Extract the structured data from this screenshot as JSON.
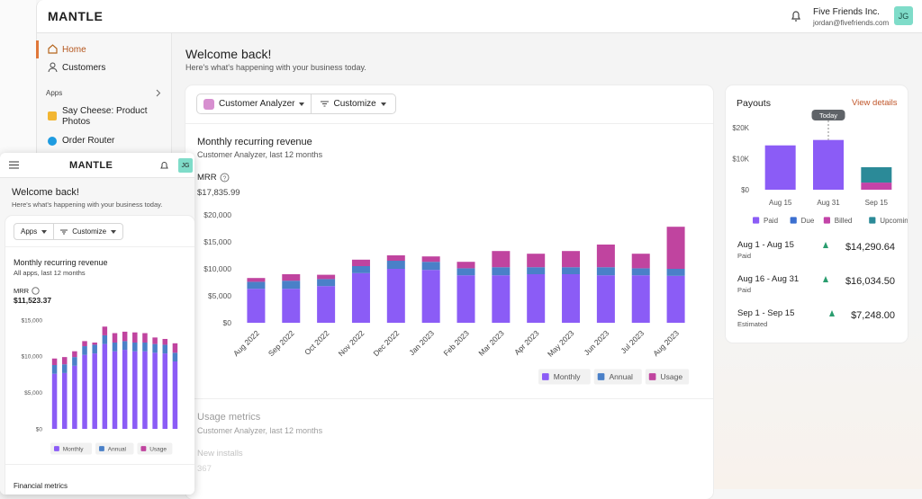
{
  "header": {
    "logo": "MANTLE",
    "company": "Five Friends Inc.",
    "email": "jordan@fivefriends.com",
    "avatar": "JG"
  },
  "sidebar": {
    "nav": [
      "Home",
      "Customers"
    ],
    "apps_heading": "Apps",
    "apps": [
      "Say Cheese: Product Photos",
      "Order Router"
    ]
  },
  "welcome": {
    "title": "Welcome back!",
    "subtitle": "Here's what's happening with your business today."
  },
  "toolbar": {
    "app_select": "Customer Analyzer",
    "customize": "Customize"
  },
  "mrr_card": {
    "title": "Monthly recurring revenue",
    "subtitle": "Customer Analyzer, last 12 months",
    "metric_label": "MRR",
    "metric_value": "$17,835.99"
  },
  "usage_card": {
    "title": "Usage metrics",
    "subtitle": "Customer Analyzer, last 12 months",
    "metric_label": "New installs",
    "metric_value": "367"
  },
  "payouts": {
    "title": "Payouts",
    "link": "View details",
    "rows": [
      {
        "period": "Aug 1 - Aug 15",
        "status": "Paid",
        "amount": "$14,290.64"
      },
      {
        "period": "Aug 16 - Aug 31",
        "status": "Paid",
        "amount": "$16,034.50"
      },
      {
        "period": "Sep 1 - Sep 15",
        "status": "Estimated",
        "amount": "$7,248.00"
      }
    ]
  },
  "mobile": {
    "logo": "MANTLE",
    "avatar": "JG",
    "title": "Welcome back!",
    "subtitle": "Here's what's happening with your business today.",
    "apps_button": "Apps",
    "customize": "Customize",
    "card_title": "Monthly recurring revenue",
    "card_subtitle": "All apps, last 12 months",
    "metric_label": "MRR",
    "metric_value": "$11,523.37",
    "next_section": "Financial metrics"
  },
  "chart_data": [
    {
      "type": "bar",
      "stacked": true,
      "grid": false,
      "categories": [
        "Aug 2022",
        "Sep 2022",
        "Oct 2022",
        "Nov 2022",
        "Dec 2022",
        "Jan 2023",
        "Feb 2023",
        "Mar 2023",
        "Apr 2023",
        "May 2023",
        "Jun 2023",
        "Jul 2023",
        "Aug 2023"
      ],
      "series": [
        {
          "name": "Monthly",
          "color": "#8b5cf6",
          "values": [
            6300,
            6300,
            6800,
            9200,
            10000,
            9800,
            8800,
            8800,
            9000,
            9000,
            8800,
            8800,
            8700
          ]
        },
        {
          "name": "Annual",
          "color": "#4a80c8",
          "values": [
            1300,
            1500,
            1300,
            1300,
            1500,
            1500,
            1300,
            1500,
            1300,
            1300,
            1500,
            1300,
            1300
          ]
        },
        {
          "name": "Usage",
          "color": "#c0449f",
          "values": [
            700,
            1200,
            800,
            1200,
            1000,
            1000,
            1200,
            3000,
            2500,
            3000,
            4200,
            2700,
            7800
          ]
        }
      ],
      "ylim": [
        0,
        20000
      ],
      "yticks": [
        {
          "value": 0,
          "label": "$0"
        },
        {
          "value": 5000,
          "label": "$5,000"
        },
        {
          "value": 10000,
          "label": "$10,000"
        },
        {
          "value": 15000,
          "label": "$15,000"
        },
        {
          "value": 20000,
          "label": "$20,000"
        }
      ]
    },
    {
      "type": "bar",
      "stacked": true,
      "grid": false,
      "categories": [
        "Aug 15",
        "Aug 31",
        "Sep 15"
      ],
      "series": [
        {
          "name": "Paid",
          "color": "#8b5cf6",
          "values": [
            14290.64,
            16034.5,
            0
          ]
        },
        {
          "name": "Due",
          "color": "#3b6fd0",
          "values": [
            0,
            0,
            0
          ]
        },
        {
          "name": "Billed",
          "color": "#c344a8",
          "values": [
            0,
            0,
            2300
          ]
        },
        {
          "name": "Upcoming",
          "color": "#2b8a98",
          "values": [
            0,
            0,
            4948
          ]
        }
      ],
      "ylim": [
        0,
        20000
      ],
      "yticks": [
        {
          "value": 0,
          "label": "$0"
        },
        {
          "value": 10000,
          "label": "$10K"
        },
        {
          "value": 20000,
          "label": "$20K"
        }
      ],
      "annotations": [
        {
          "category": "Aug 31",
          "text": "Today"
        }
      ]
    },
    {
      "type": "bar",
      "stacked": true,
      "grid": false,
      "categories": [
        null,
        null,
        null,
        null,
        null,
        null,
        null,
        null,
        null,
        null,
        null,
        null,
        null
      ],
      "series": [
        {
          "name": "Monthly",
          "color": "#8b5cf6",
          "values": [
            7600,
            7700,
            8700,
            10200,
            10400,
            11700,
            10700,
            10900,
            10700,
            10700,
            10500,
            10400,
            9300
          ]
        },
        {
          "name": "Annual",
          "color": "#4a80c8",
          "values": [
            1200,
            1200,
            1200,
            1200,
            1200,
            1200,
            1200,
            1200,
            1200,
            1200,
            1200,
            1200,
            1200
          ]
        },
        {
          "name": "Usage",
          "color": "#c0449f",
          "values": [
            900,
            1000,
            800,
            700,
            300,
            1200,
            1300,
            1300,
            1400,
            1300,
            900,
            800,
            1300
          ]
        }
      ],
      "ylim": [
        0,
        15000
      ],
      "yticks": [
        {
          "value": 0,
          "label": "$0"
        },
        {
          "value": 5000,
          "label": "$5,000"
        },
        {
          "value": 10000,
          "label": "$10,000"
        },
        {
          "value": 15000,
          "label": "$15,000"
        }
      ]
    }
  ]
}
